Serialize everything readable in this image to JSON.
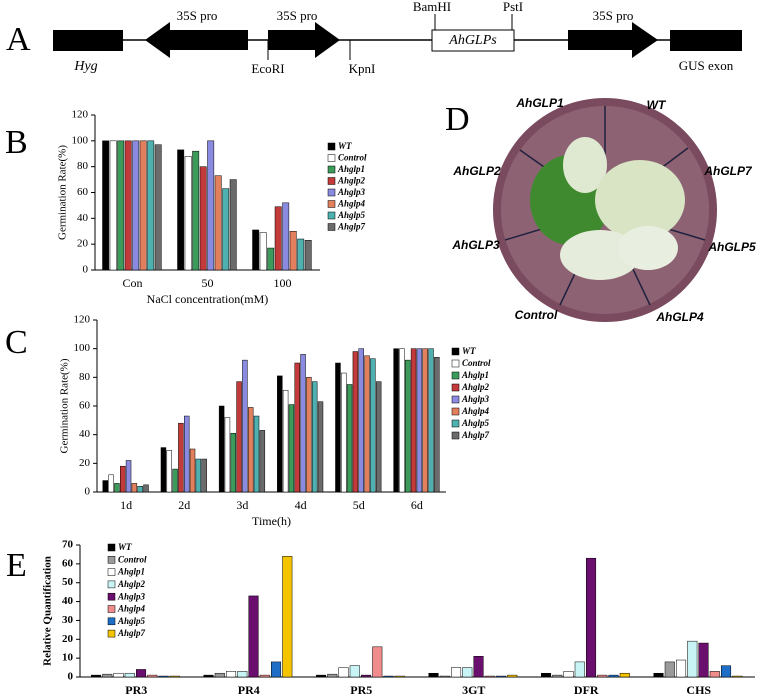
{
  "panel_a": {
    "label": "A",
    "texts": [
      "35S pro",
      "35S pro",
      "BamHI",
      "PstI",
      "AhGLPs",
      "35S pro",
      "Hyg",
      "EcoRI",
      "KpnI",
      "GUS exon"
    ]
  },
  "panel_d": {
    "label": "D",
    "texts": [
      "AhGLP1",
      "WT",
      "AhGLP7",
      "AhGLP5",
      "AhGLP4",
      "Control",
      "AhGLP3",
      "AhGLP2"
    ]
  },
  "chart_data": [
    {
      "type": "bar",
      "panel_label": "B",
      "x_label": "NaCl concentration(mM)",
      "y_label": "Germination  Rate(%)",
      "legend": "right",
      "categories": [
        "Con",
        "50",
        "100"
      ],
      "ylim": [
        0,
        120
      ],
      "yticks": [
        0,
        20,
        40,
        60,
        80,
        100,
        120
      ],
      "series": [
        {
          "name": "WT",
          "color": "#000000",
          "values": [
            100,
            93,
            31
          ]
        },
        {
          "name": "Control",
          "color": "#ffffff",
          "values": [
            100,
            88,
            29
          ]
        },
        {
          "name": "Ahglp1",
          "color": "#3c9a5a",
          "values": [
            100,
            92,
            17
          ]
        },
        {
          "name": "Ahglp2",
          "color": "#c23a3a",
          "values": [
            100,
            80,
            49
          ]
        },
        {
          "name": "Ahglp3",
          "color": "#8a8ae0",
          "values": [
            100,
            100,
            52
          ]
        },
        {
          "name": "Ahglp4",
          "color": "#e2805e",
          "values": [
            100,
            73,
            30
          ]
        },
        {
          "name": "Ahglp5",
          "color": "#4fb0b0",
          "values": [
            100,
            63,
            24
          ]
        },
        {
          "name": "Ahglp7",
          "color": "#6b6b6b",
          "values": [
            97,
            70,
            23
          ]
        }
      ]
    },
    {
      "type": "bar",
      "panel_label": "C",
      "x_label": "Time(h)",
      "y_label": "Germination Rate(%)",
      "legend": "right",
      "categories": [
        "1d",
        "2d",
        "3d",
        "4d",
        "5d",
        "6d"
      ],
      "ylim": [
        0,
        120
      ],
      "yticks": [
        0,
        20,
        40,
        60,
        80,
        100,
        120
      ],
      "series": [
        {
          "name": "WT",
          "color": "#000000",
          "values": [
            8,
            31,
            60,
            81,
            90,
            100
          ]
        },
        {
          "name": "Control",
          "color": "#ffffff",
          "values": [
            12,
            29,
            52,
            71,
            83,
            100
          ]
        },
        {
          "name": "Ahglp1",
          "color": "#3c9a5a",
          "values": [
            6,
            16,
            41,
            61,
            75,
            92
          ]
        },
        {
          "name": "Ahglp2",
          "color": "#c23a3a",
          "values": [
            18,
            48,
            77,
            90,
            98,
            100
          ]
        },
        {
          "name": "Ahglp3",
          "color": "#8a8ae0",
          "values": [
            22,
            53,
            92,
            96,
            100,
            100
          ]
        },
        {
          "name": "Ahglp4",
          "color": "#e2805e",
          "values": [
            6,
            30,
            59,
            80,
            95,
            100
          ]
        },
        {
          "name": "Ahglp5",
          "color": "#4fb0b0",
          "values": [
            4,
            23,
            53,
            77,
            93,
            100
          ]
        },
        {
          "name": "Ahglp7",
          "color": "#6b6b6b",
          "values": [
            5,
            23,
            43,
            63,
            77,
            94
          ]
        }
      ]
    },
    {
      "type": "bar",
      "panel_label": "E",
      "y_label": "Relative Quantification",
      "legend": "upper left",
      "categories": [
        "PR3",
        "PR4",
        "PR5",
        "3GT",
        "DFR",
        "CHS"
      ],
      "ylim": [
        0,
        70
      ],
      "yticks": [
        0,
        10,
        20,
        30,
        40,
        50,
        60,
        70
      ],
      "series": [
        {
          "name": "WT",
          "color": "#000000",
          "values": [
            1,
            1,
            1,
            2,
            2,
            2
          ]
        },
        {
          "name": "Control",
          "color": "#9a9a9a",
          "values": [
            1.5,
            2,
            1.5,
            0.5,
            1,
            8
          ]
        },
        {
          "name": "Ahglp1",
          "color": "#ffffff",
          "values": [
            2,
            3,
            5,
            5,
            3,
            9
          ]
        },
        {
          "name": "Ahglp2",
          "color": "#c8f4f6",
          "values": [
            2,
            3,
            6,
            5,
            8,
            19
          ]
        },
        {
          "name": "Ahglp3",
          "color": "#6a0f6e",
          "values": [
            4,
            43,
            1,
            11,
            63,
            18
          ]
        },
        {
          "name": "Ahglp4",
          "color": "#f08c8c",
          "values": [
            1,
            1,
            16,
            0.5,
            1,
            3
          ]
        },
        {
          "name": "Ahglp5",
          "color": "#1e6ec8",
          "values": [
            0.5,
            8,
            0.5,
            0.5,
            1,
            6
          ]
        },
        {
          "name": "Ahglp7",
          "color": "#f5c400",
          "values": [
            0.5,
            64,
            0.5,
            1,
            2,
            0.5
          ]
        }
      ]
    }
  ]
}
